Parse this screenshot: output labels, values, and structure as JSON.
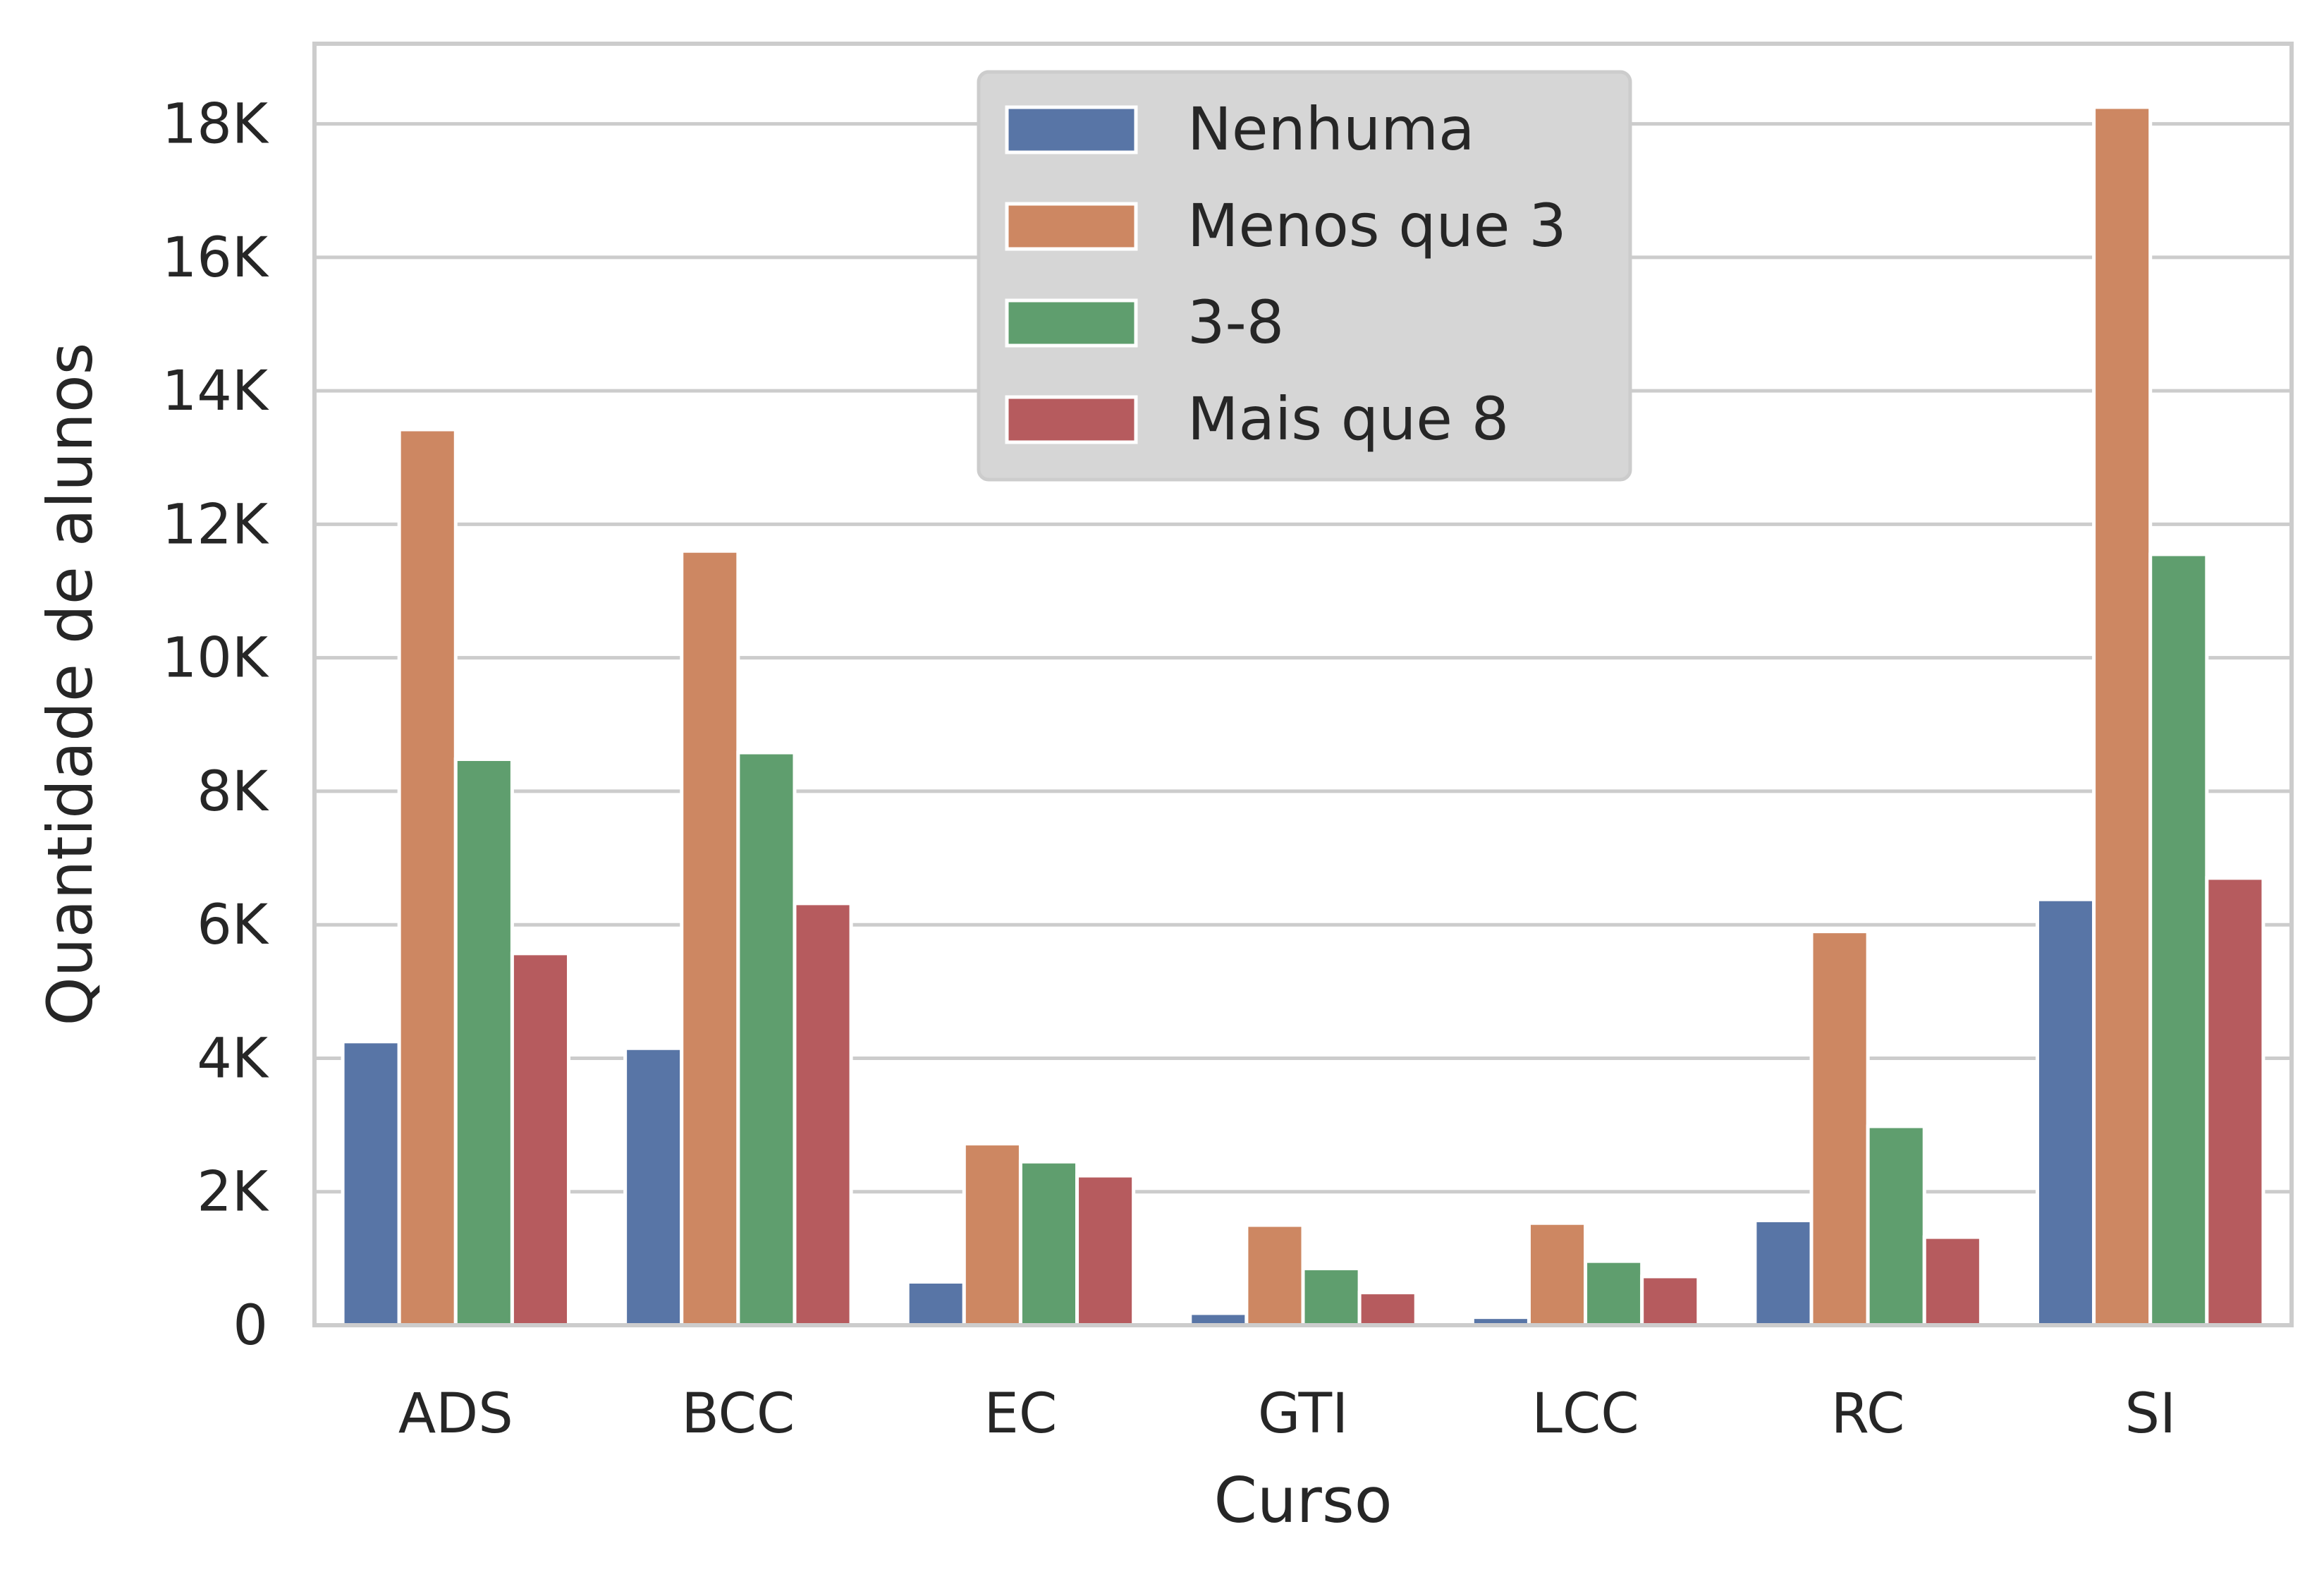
{
  "chart_data": {
    "type": "bar",
    "title": "",
    "xlabel": "Curso",
    "ylabel": "Quantidade de alunos",
    "categories": [
      "ADS",
      "BCC",
      "EC",
      "GTI",
      "LCC",
      "RC",
      "SI"
    ],
    "series": [
      {
        "name": "Nenhuma",
        "color": "#5875a6",
        "values": [
          4250,
          4150,
          650,
          180,
          120,
          1570,
          6380
        ]
      },
      {
        "name": "Menos que 3",
        "color": "#cd8762",
        "values": [
          13420,
          11600,
          2720,
          1500,
          1530,
          5900,
          18250
        ]
      },
      {
        "name": "3-8",
        "color": "#5f9e6e",
        "values": [
          8480,
          8580,
          2450,
          850,
          960,
          2980,
          11550
        ]
      },
      {
        "name": "Mais que 8",
        "color": "#b65b5e",
        "values": [
          5570,
          6320,
          2240,
          490,
          730,
          1320,
          6700
        ]
      }
    ],
    "ylim": [
      0,
      19200
    ],
    "yticks": [
      {
        "value": 0,
        "label": "0"
      },
      {
        "value": 2000,
        "label": "2K"
      },
      {
        "value": 4000,
        "label": "4K"
      },
      {
        "value": 6000,
        "label": "6K"
      },
      {
        "value": 8000,
        "label": "8K"
      },
      {
        "value": 10000,
        "label": "10K"
      },
      {
        "value": 12000,
        "label": "12K"
      },
      {
        "value": 14000,
        "label": "14K"
      },
      {
        "value": 16000,
        "label": "16K"
      },
      {
        "value": 18000,
        "label": "18K"
      }
    ],
    "grid": true,
    "legend_position": "top-center"
  }
}
